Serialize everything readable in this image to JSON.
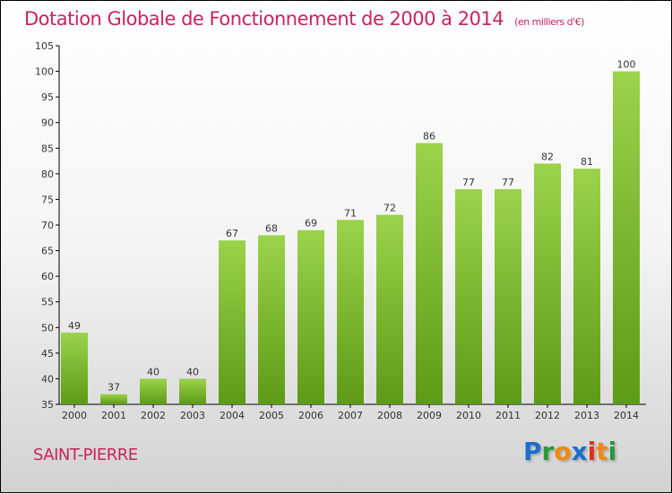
{
  "chart_data": {
    "type": "bar",
    "title": "Dotation Globale de Fonctionnement de 2000 à 2014",
    "subtitle": "(en milliers d'€)",
    "categories": [
      "2000",
      "2001",
      "2002",
      "2003",
      "2004",
      "2005",
      "2006",
      "2007",
      "2008",
      "2009",
      "2010",
      "2011",
      "2012",
      "2013",
      "2014"
    ],
    "values": [
      49,
      37,
      40,
      40,
      67,
      68,
      69,
      71,
      72,
      86,
      77,
      77,
      82,
      81,
      100
    ],
    "ylim": [
      35,
      105
    ],
    "yticks": [
      35,
      40,
      45,
      50,
      55,
      60,
      65,
      70,
      75,
      80,
      85,
      90,
      95,
      100,
      105
    ],
    "xlabel": "",
    "ylabel": "",
    "grid": false,
    "bar_color_top": "#9bd34b",
    "bar_color_bottom": "#5d9a16"
  },
  "commune": "SAINT-PIERRE",
  "logo": "Proxiti"
}
